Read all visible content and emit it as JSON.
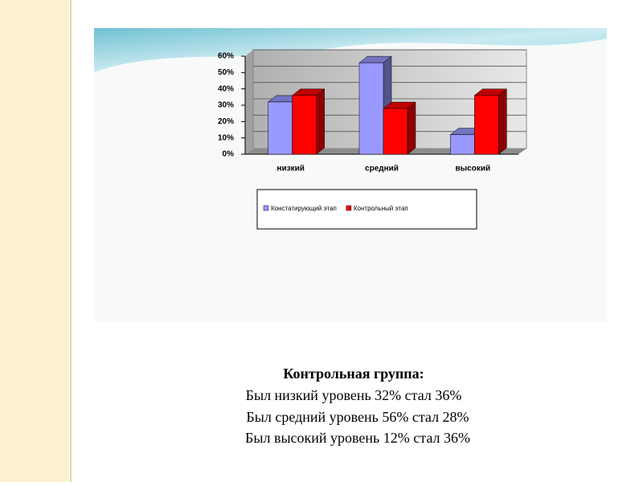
{
  "chart_data": {
    "type": "bar",
    "categories": [
      "низкий",
      "средний",
      "высокий"
    ],
    "series": [
      {
        "name": "Констатирующий этап",
        "color": "#9999ff",
        "values": [
          32,
          56,
          12
        ]
      },
      {
        "name": "Контрольный этап",
        "color": "#ff0000",
        "values": [
          36,
          28,
          36
        ]
      }
    ],
    "ylim": [
      0,
      60
    ],
    "yticks": [
      {
        "value": 0,
        "label": "0%"
      },
      {
        "value": 10,
        "label": "10%"
      },
      {
        "value": 20,
        "label": "20%"
      },
      {
        "value": 30,
        "label": "30%"
      },
      {
        "value": 40,
        "label": "40%"
      },
      {
        "value": 50,
        "label": "50%"
      },
      {
        "value": 60,
        "label": "60%"
      }
    ],
    "grid": true,
    "legend": "bottom"
  },
  "caption": {
    "title": "Контрольная группа:",
    "lines": [
      "Был низкий уровень 32% стал 36%",
      "Был средний уровень 56% стал 28%",
      "Был высокий уровень 12% стал 36%"
    ]
  }
}
